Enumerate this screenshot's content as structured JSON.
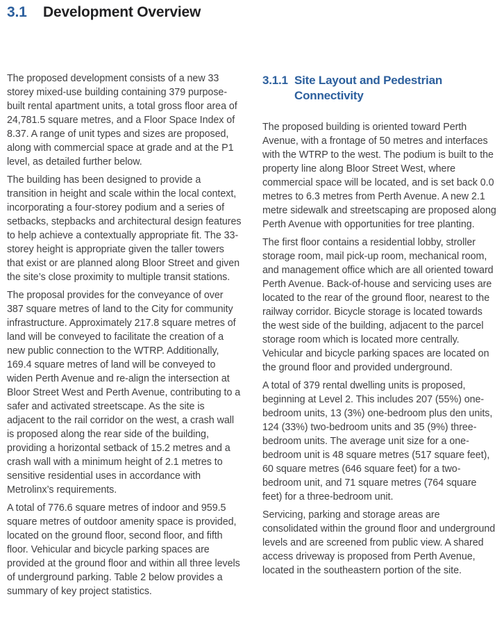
{
  "colors": {
    "accent_blue": "#2c5f9d",
    "heading_dark": "#212123",
    "body_text": "#404042"
  },
  "heading": {
    "number": "3.1",
    "title": "Development Overview"
  },
  "left_column": {
    "paragraphs": [
      "The proposed development consists of a new 33 storey mixed-use building containing 379 purpose-built rental apartment units, a total gross floor area of 24,781.5 square metres, and a Floor Space Index of 8.37. A range of unit types and sizes are proposed, along with commercial space at grade and at the P1 level, as detailed further below.",
      "The building has been designed to provide a transition in height and scale within the local context, incorporating a four-storey podium and a series of setbacks, stepbacks and architectural design features to help achieve a contextually appropriate fit. The 33-storey height is appropriate given the taller towers that exist or are planned along Bloor Street and given the site’s close proximity to multiple transit stations.",
      "The proposal provides for the conveyance of over 387 square metres of land to the City for community infrastructure. Approximately 217.8 square metres of land will be conveyed to facilitate the creation of a new public connection to the WTRP. Additionally, 169.4 square metres of land will be conveyed to widen Perth Avenue and re-align the intersection at Bloor Street West and Perth Avenue, contributing to a safer and activated streetscape. As the site is adjacent to the rail corridor on the west, a crash wall is proposed along the rear side of the building, providing a horizontal setback of 15.2 metres and a crash wall with a minimum height of 2.1 metres to sensitive residential uses in accordance with Metrolinx’s requirements.",
      "A total of 776.6 square metres of indoor and 959.5 square metres of outdoor amenity space is provided, located on the ground floor, second floor, and fifth floor. Vehicular and bicycle parking spaces are provided at the ground floor and within all three levels of underground parking. Table 2 below provides a summary of key project statistics."
    ]
  },
  "right_column": {
    "subheading": {
      "number": "3.1.1",
      "title": "Site Layout and Pedestrian Connectivity"
    },
    "paragraphs": [
      "The proposed building is oriented toward Perth Avenue, with a frontage of 50 metres and interfaces with the WTRP to the west. The podium is built to the property line along Bloor Street West, where commercial space will be located, and is set back 0.0 metres to 6.3 metres from Perth Avenue. A new 2.1 metre sidewalk and streetscaping are proposed along Perth Avenue with opportunities for tree planting.",
      "The first floor contains a residential lobby, stroller storage room, mail pick-up room, mechanical room, and management office which are all oriented toward Perth Avenue. Back-of-house and servicing uses are located to the rear of the ground floor, nearest to the railway corridor. Bicycle storage is located towards the west side of the building, adjacent to the parcel storage room which is located more centrally. Vehicular and bicycle parking spaces are located on the ground floor and provided underground.",
      "A total of 379 rental dwelling units is proposed, beginning at Level 2. This includes 207 (55%) one-bedroom units, 13 (3%) one-bedroom plus den units, 124 (33%) two-bedroom units and 35 (9%) three-bedroom units. The average unit size for a one-bedroom unit is 48 square metres (517 square feet), 60 square metres (646 square feet) for a two-bedroom unit, and 71 square metres (764 square feet) for a three-bedroom unit.",
      "Servicing, parking and storage areas are consolidated within the ground floor and underground levels and are screened from public view. A shared access driveway is proposed from Perth Avenue, located in the southeastern portion of the site."
    ]
  }
}
